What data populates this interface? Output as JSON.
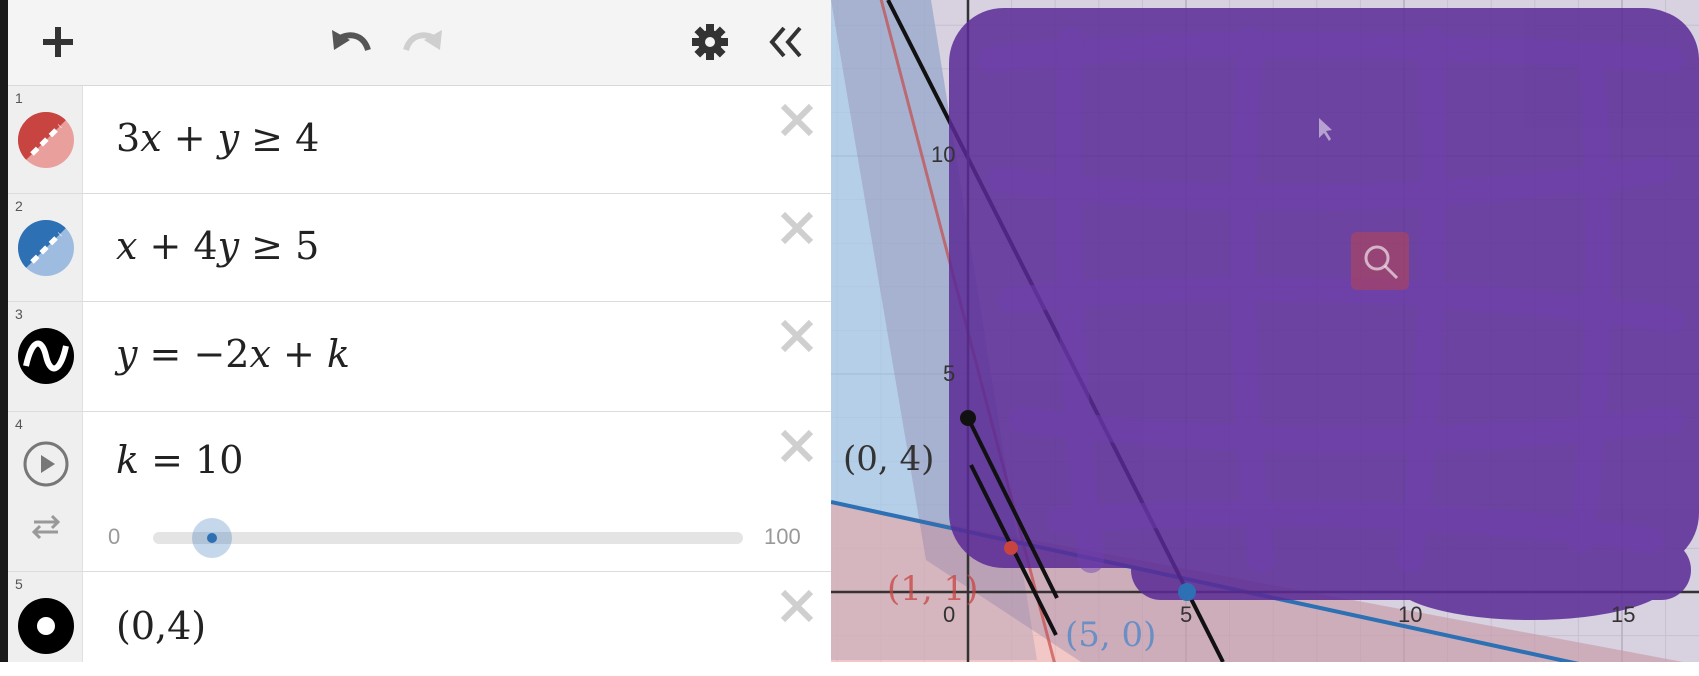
{
  "toolbar": {
    "add_icon": "plus-icon",
    "undo_icon": "undo-icon",
    "redo_icon": "redo-icon",
    "settings_icon": "gear-icon",
    "collapse_icon": "double-chevron-left-icon"
  },
  "expressions": [
    {
      "num": "1",
      "latex_parts": [
        "3",
        "x",
        " + ",
        "y",
        " ≥ 4"
      ],
      "color": "#c74440"
    },
    {
      "num": "2",
      "latex_parts": [
        "x",
        " + 4",
        "y",
        " ≥ 5"
      ],
      "color": "#2d70b3"
    },
    {
      "num": "3",
      "latex_parts": [
        "y",
        " = −2",
        "x",
        " + ",
        "k"
      ],
      "color": "#000000"
    },
    {
      "num": "4",
      "latex_parts": [
        "k",
        " = 10"
      ],
      "slider_min": "0",
      "slider_max": "100",
      "slider_value": 10
    },
    {
      "num": "5",
      "latex": "(0,4)",
      "color": "#000000"
    }
  ],
  "graph": {
    "x_ticks": [
      "0",
      "5",
      "10",
      "15"
    ],
    "y_ticks": [
      "5",
      "10"
    ],
    "point_labels": [
      "(0, 4)",
      "(1, 1)",
      "(5, 0)"
    ],
    "colors": {
      "red": "#c74440",
      "blue": "#2d70b3",
      "purple": "#5a2a96"
    }
  }
}
